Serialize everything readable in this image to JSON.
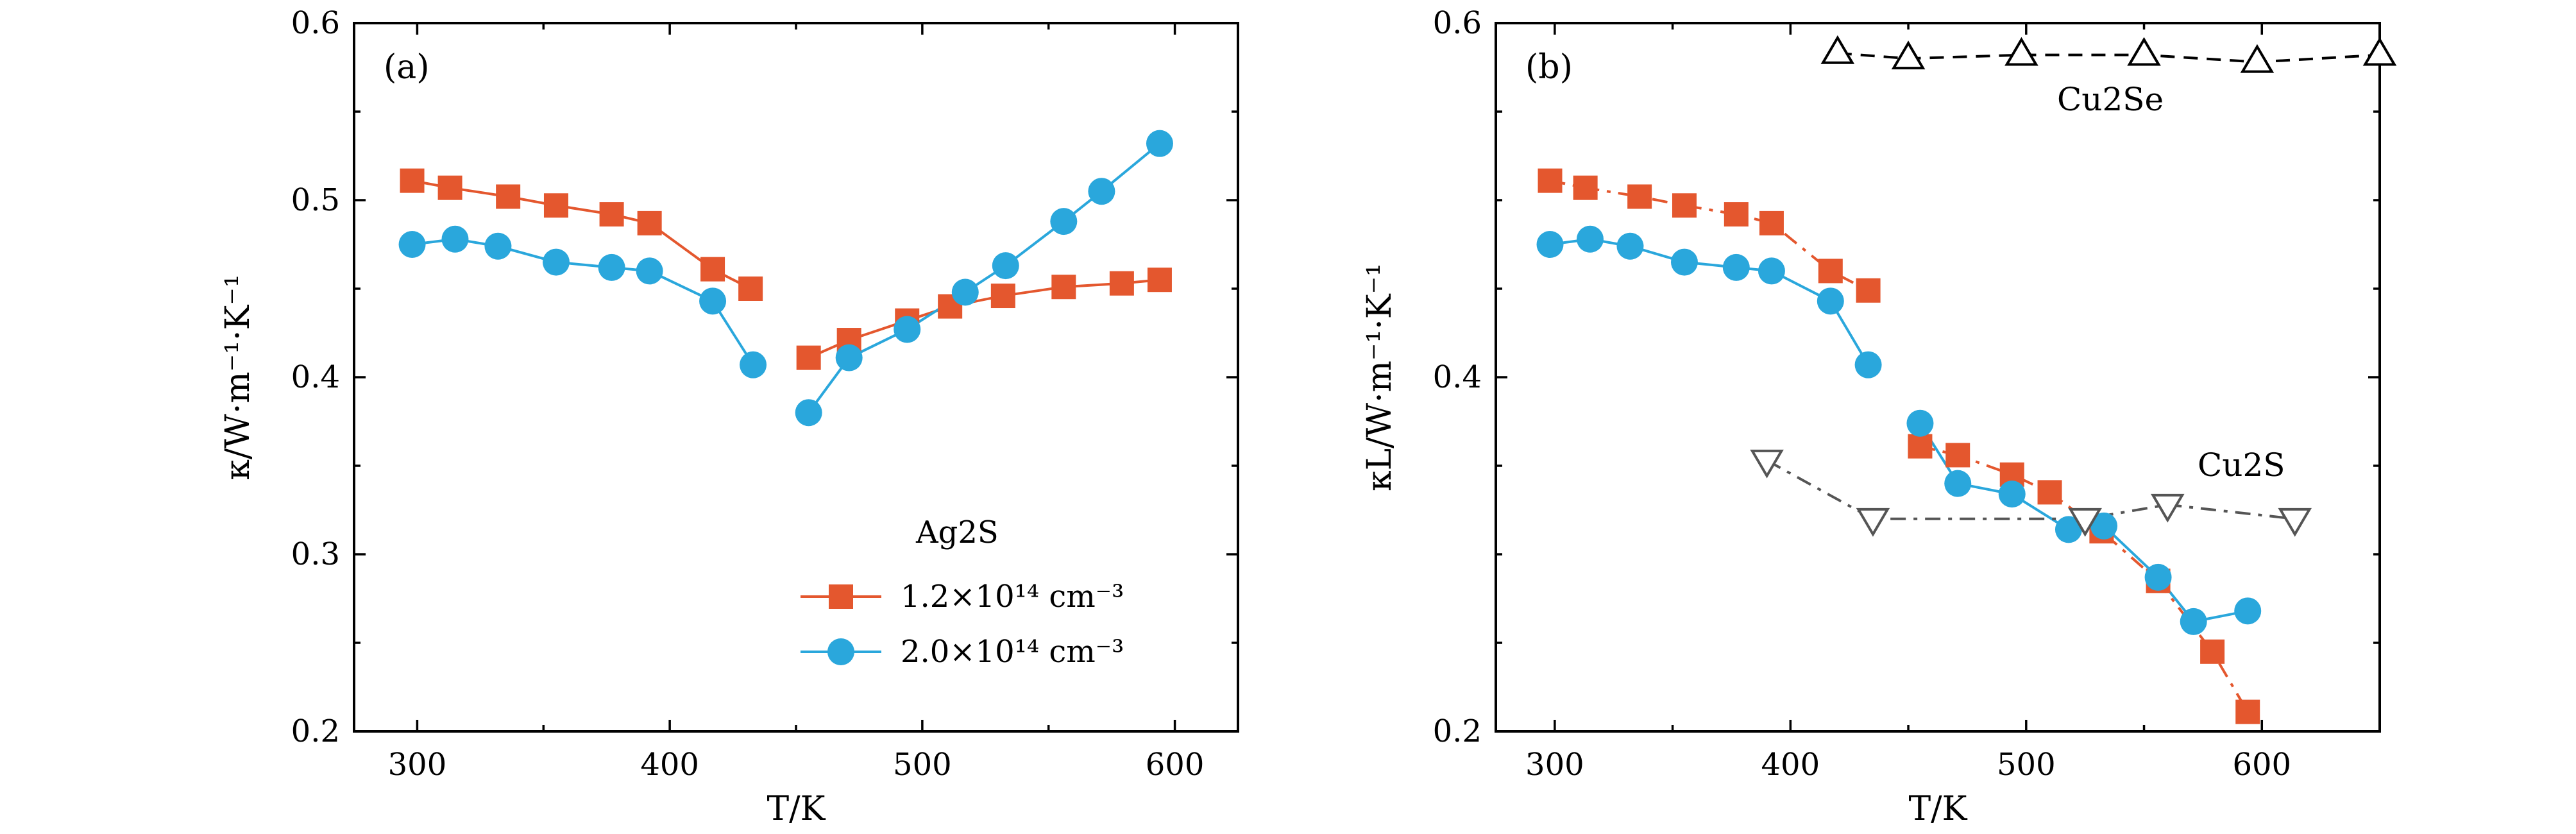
{
  "colors": {
    "orange": "#E4572E",
    "blue": "#2AA7DC",
    "black": "#000000",
    "gray": "#555555"
  },
  "chart_data": [
    {
      "type": "line",
      "panel": "(a)",
      "xlabel": "T/K",
      "ylabel": "κ/W·m⁻¹·K⁻¹",
      "xlim": [
        275,
        625
      ],
      "ylim": [
        0.2,
        0.6
      ],
      "xticks": [
        300,
        400,
        500,
        600
      ],
      "yticks": [
        0.2,
        0.3,
        0.4,
        0.5,
        0.6
      ],
      "xtick_labels": [
        "300",
        "400",
        "500",
        "600"
      ],
      "ytick_labels": [
        "0.2",
        "0.3",
        "0.4",
        "0.5",
        "0.6"
      ],
      "legend_title": "Ag2S",
      "legend_position": "bottom-right",
      "series": [
        {
          "name": "1.2×10¹⁴ cm⁻³",
          "legend_text": "1.2×10^14 cm^-3",
          "color": "#E4572E",
          "marker": "square",
          "line": "solid",
          "segments": [
            [
              [
                298,
                0.511
              ],
              [
                313,
                0.507
              ],
              [
                336,
                0.502
              ],
              [
                355,
                0.497
              ],
              [
                377,
                0.492
              ],
              [
                392,
                0.487
              ],
              [
                417,
                0.461
              ],
              [
                432,
                0.45
              ]
            ],
            [
              [
                455,
                0.411
              ],
              [
                471,
                0.421
              ],
              [
                494,
                0.432
              ],
              [
                511,
                0.44
              ],
              [
                532,
                0.446
              ],
              [
                556,
                0.451
              ],
              [
                579,
                0.453
              ],
              [
                594,
                0.455
              ]
            ]
          ]
        },
        {
          "name": "2.0×10¹⁴ cm⁻³",
          "legend_text": "2.0×10^14 cm^-3",
          "color": "#2AA7DC",
          "marker": "circle",
          "line": "solid",
          "segments": [
            [
              [
                298,
                0.475
              ],
              [
                315,
                0.478
              ],
              [
                332,
                0.474
              ],
              [
                355,
                0.465
              ],
              [
                377,
                0.462
              ],
              [
                392,
                0.46
              ],
              [
                417,
                0.443
              ],
              [
                433,
                0.407
              ]
            ],
            [
              [
                455,
                0.38
              ],
              [
                471,
                0.411
              ],
              [
                494,
                0.427
              ],
              [
                517,
                0.448
              ],
              [
                533,
                0.463
              ],
              [
                556,
                0.488
              ],
              [
                571,
                0.505
              ],
              [
                594,
                0.532
              ]
            ]
          ]
        }
      ]
    },
    {
      "type": "line",
      "panel": "(b)",
      "xlabel": "T/K",
      "ylabel": "κL/W·m⁻¹·K⁻¹",
      "xlim": [
        275,
        650
      ],
      "ylim": [
        0.2,
        0.6
      ],
      "xticks": [
        300,
        400,
        500,
        600
      ],
      "yticks": [
        0.2,
        0.4,
        0.6
      ],
      "xtick_labels": [
        "300",
        "400",
        "500",
        "600"
      ],
      "ytick_labels": [
        "0.2",
        "0.4",
        "0.6"
      ],
      "annotations": [
        "Cu2Se",
        "Cu2S"
      ],
      "series": [
        {
          "name": "1.2×10¹⁴ cm⁻³",
          "color": "#E4572E",
          "marker": "square",
          "line": "dashdot",
          "segments": [
            [
              [
                298,
                0.511
              ],
              [
                313,
                0.507
              ],
              [
                336,
                0.502
              ],
              [
                355,
                0.497
              ],
              [
                377,
                0.492
              ],
              [
                392,
                0.487
              ],
              [
                417,
                0.46
              ],
              [
                433,
                0.449
              ]
            ],
            [
              [
                455,
                0.361
              ],
              [
                471,
                0.356
              ],
              [
                494,
                0.345
              ],
              [
                510,
                0.335
              ],
              [
                532,
                0.313
              ],
              [
                556,
                0.285
              ],
              [
                579,
                0.245
              ],
              [
                594,
                0.211
              ]
            ]
          ]
        },
        {
          "name": "2.0×10¹⁴ cm⁻³",
          "color": "#2AA7DC",
          "marker": "circle",
          "line": "solid",
          "segments": [
            [
              [
                298,
                0.475
              ],
              [
                315,
                0.478
              ],
              [
                332,
                0.474
              ],
              [
                355,
                0.465
              ],
              [
                377,
                0.462
              ],
              [
                392,
                0.46
              ],
              [
                417,
                0.443
              ],
              [
                433,
                0.407
              ]
            ],
            [
              [
                455,
                0.374
              ],
              [
                471,
                0.34
              ],
              [
                494,
                0.334
              ],
              [
                518,
                0.314
              ],
              [
                533,
                0.316
              ],
              [
                556,
                0.287
              ],
              [
                571,
                0.262
              ],
              [
                594,
                0.268
              ]
            ]
          ]
        },
        {
          "name": "Cu2Se",
          "color": "#000000",
          "marker": "triangle-up",
          "line": "dashed",
          "segments": [
            [
              [
                420,
                0.583
              ],
              [
                450,
                0.58
              ],
              [
                498,
                0.582
              ],
              [
                550,
                0.582
              ],
              [
                598,
                0.578
              ],
              [
                650,
                0.582
              ]
            ]
          ]
        },
        {
          "name": "Cu2S",
          "color": "#555555",
          "marker": "triangle-down",
          "line": "dashdot",
          "segments": [
            [
              [
                390,
                0.353
              ],
              [
                435,
                0.32
              ],
              [
                525,
                0.32
              ],
              [
                560,
                0.328
              ],
              [
                614,
                0.32
              ]
            ]
          ]
        }
      ]
    }
  ]
}
